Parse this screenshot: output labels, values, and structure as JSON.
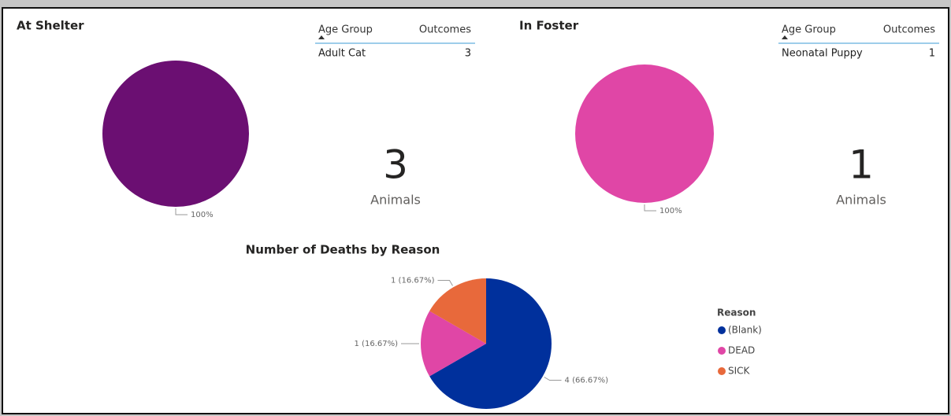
{
  "chart_data": [
    {
      "type": "pie",
      "title": "At Shelter",
      "values": [
        100
      ],
      "value_labels": [
        "100%"
      ],
      "colors": [
        "#6b0f72"
      ]
    },
    {
      "type": "pie",
      "title": "In Foster",
      "values": [
        100
      ],
      "value_labels": [
        "100%"
      ],
      "colors": [
        "#e046a6"
      ]
    },
    {
      "type": "pie",
      "title": "Number of Deaths by Reason",
      "categories": [
        "(Blank)",
        "DEAD",
        "SICK"
      ],
      "values": [
        4,
        1,
        1
      ],
      "value_labels": [
        "4 (66.67%)",
        "1 (16.67%)",
        "1 (16.67%)"
      ],
      "colors": [
        "#00309c",
        "#e046a6",
        "#e8693b"
      ],
      "legend": "right",
      "legend_title": "Reason"
    }
  ],
  "tables": [
    {
      "columns": [
        "Age Group",
        "Outcomes"
      ],
      "rows": [
        [
          "Adult Cat",
          3
        ]
      ]
    },
    {
      "columns": [
        "Age Group",
        "Outcomes"
      ],
      "rows": [
        [
          "Neonatal Puppy",
          1
        ]
      ]
    }
  ],
  "cards": [
    {
      "value": 3,
      "label": "Animals"
    },
    {
      "value": 1,
      "label": "Animals"
    }
  ]
}
